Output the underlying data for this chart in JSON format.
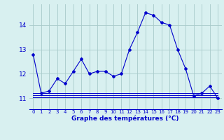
{
  "x": [
    0,
    1,
    2,
    3,
    4,
    5,
    6,
    7,
    8,
    9,
    10,
    11,
    12,
    13,
    14,
    15,
    16,
    17,
    18,
    19,
    20,
    21,
    22,
    23
  ],
  "main_line": [
    12.8,
    11.2,
    11.3,
    11.8,
    11.6,
    12.1,
    12.6,
    12.0,
    12.1,
    12.1,
    11.9,
    12.0,
    13.0,
    13.7,
    14.5,
    14.4,
    14.1,
    14.0,
    13.0,
    12.2,
    11.1,
    11.2,
    11.5,
    11.0
  ],
  "flat_line1": [
    11.05,
    11.05,
    11.05,
    11.05,
    11.05,
    11.05,
    11.05,
    11.05,
    11.05,
    11.05,
    11.05,
    11.05,
    11.05,
    11.05,
    11.05,
    11.05,
    11.05,
    11.05,
    11.05,
    11.05,
    11.05,
    11.05,
    11.05,
    11.05
  ],
  "flat_line2": [
    11.12,
    11.12,
    11.12,
    11.12,
    11.12,
    11.12,
    11.12,
    11.12,
    11.12,
    11.12,
    11.12,
    11.12,
    11.12,
    11.12,
    11.12,
    11.12,
    11.12,
    11.12,
    11.12,
    11.12,
    11.12,
    11.12,
    11.12,
    11.12
  ],
  "flat_line3": [
    11.2,
    11.2,
    11.2,
    11.2,
    11.2,
    11.2,
    11.2,
    11.2,
    11.2,
    11.2,
    11.2,
    11.2,
    11.2,
    11.2,
    11.2,
    11.2,
    11.2,
    11.2,
    11.2,
    11.2,
    11.2,
    11.2,
    11.2,
    11.2
  ],
  "line_color": "#0000cc",
  "bg_color": "#d8f0f0",
  "grid_color": "#a8caca",
  "axis_color": "#0000cc",
  "xlabel": "Graphe des températures (°C)",
  "yticks": [
    11,
    12,
    13,
    14
  ],
  "ylim": [
    10.55,
    14.85
  ],
  "xlim": [
    -0.5,
    23.5
  ]
}
